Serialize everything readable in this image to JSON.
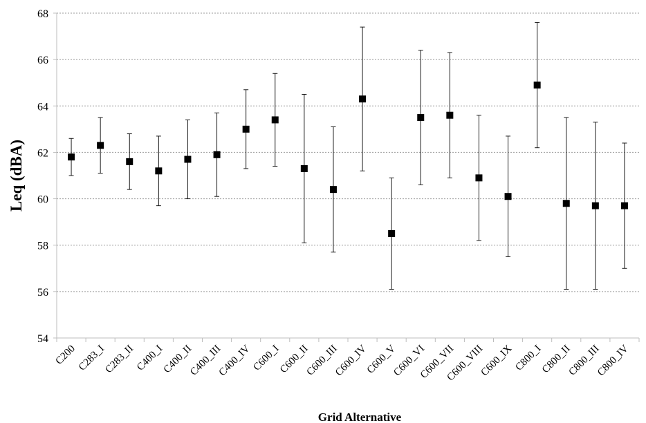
{
  "chart_data": {
    "type": "scatter",
    "title": "",
    "xlabel": "Grid Alternative",
    "ylabel": "Leq (dBA)",
    "ylim": [
      54,
      68
    ],
    "yticks": [
      54,
      56,
      58,
      60,
      62,
      64,
      66,
      68
    ],
    "grid": true,
    "legend": "none",
    "categories": [
      "C200",
      "C283_I",
      "C283_II",
      "C400_I",
      "C400_II",
      "C400_III",
      "C400_IV",
      "C600_I",
      "C600_II",
      "C600_III",
      "C600_IV",
      "C600_V",
      "C600_VI",
      "C600_VII",
      "C600_VIII",
      "C600_IX",
      "C800_I",
      "C800_II",
      "C800_III",
      "C800_IV"
    ],
    "values": [
      61.8,
      62.3,
      61.6,
      61.2,
      61.7,
      61.9,
      63.0,
      63.4,
      61.3,
      60.4,
      64.3,
      58.5,
      63.5,
      63.6,
      60.9,
      60.1,
      64.9,
      59.8,
      59.7,
      59.7
    ],
    "error_low": [
      61.0,
      61.1,
      60.4,
      59.7,
      60.0,
      60.1,
      61.3,
      61.4,
      58.1,
      57.7,
      61.2,
      56.1,
      60.6,
      60.9,
      58.2,
      57.5,
      62.2,
      56.1,
      56.1,
      57.0
    ],
    "error_high": [
      62.6,
      63.5,
      62.8,
      62.7,
      63.4,
      63.7,
      64.7,
      65.4,
      64.5,
      63.1,
      67.4,
      60.9,
      66.4,
      66.3,
      63.6,
      62.7,
      67.6,
      63.5,
      63.3,
      62.4
    ],
    "colors": {
      "marker": "#000000",
      "grid": "#9a9a9a",
      "axis": "#bdbdbd"
    }
  }
}
